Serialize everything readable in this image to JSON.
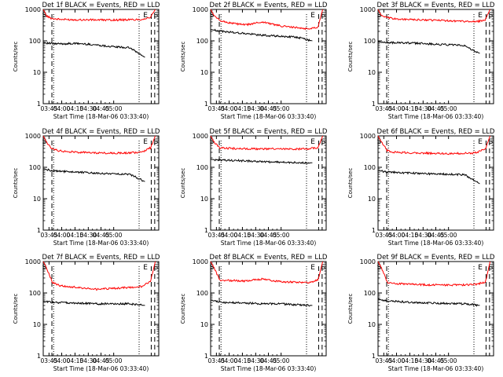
{
  "chart_data": [
    {
      "type": "line",
      "title": "Det 1f BLACK = Events, RED = LLD",
      "xlabel": "Start Time (18-Mar-06 03:33:40)",
      "ylabel": "Counts/sec",
      "ylim": [
        1,
        1000
      ],
      "yscale": "log",
      "xticks": [
        "03:45",
        "04:00",
        "04:15",
        "04:30",
        "04:45",
        "05:00"
      ],
      "yticks": [
        "1",
        "10",
        "100",
        "1000"
      ],
      "markers": [
        "S",
        "E",
        "S"
      ],
      "series": [
        {
          "color": "#ff0000",
          "x": [
            0,
            0.03,
            0.07,
            0.15,
            0.3,
            0.45,
            0.6,
            0.75,
            0.85,
            0.93,
            0.97
          ],
          "values": [
            1000,
            620,
            520,
            480,
            470,
            465,
            460,
            470,
            480,
            560,
            1000
          ]
        },
        {
          "color": "#000000",
          "x": [
            0,
            0.03,
            0.1,
            0.3,
            0.45,
            0.6,
            0.75,
            0.88
          ],
          "values": [
            88,
            85,
            80,
            82,
            75,
            65,
            60,
            30
          ]
        }
      ]
    },
    {
      "type": "line",
      "title": "Det 2f BLACK = Events, RED = LLD",
      "xlabel": "Start Time (18-Mar-06 03:33:40)",
      "ylabel": "Counts/sec",
      "ylim": [
        1,
        1000
      ],
      "yscale": "log",
      "xticks": [
        "03:45",
        "04:00",
        "04:15",
        "04:30",
        "04:45",
        "05:00"
      ],
      "yticks": [
        "1",
        "10",
        "100",
        "1000"
      ],
      "markers": [
        "S",
        "E",
        "S"
      ],
      "series": [
        {
          "color": "#ff0000",
          "x": [
            0,
            0.03,
            0.08,
            0.15,
            0.3,
            0.45,
            0.6,
            0.75,
            0.85,
            0.93,
            0.97
          ],
          "values": [
            1000,
            620,
            450,
            380,
            320,
            400,
            300,
            260,
            240,
            280,
            1000
          ]
        },
        {
          "color": "#000000",
          "x": [
            0,
            0.03,
            0.1,
            0.3,
            0.45,
            0.6,
            0.75,
            0.88
          ],
          "values": [
            230,
            220,
            200,
            170,
            150,
            140,
            130,
            100
          ]
        }
      ]
    },
    {
      "type": "line",
      "title": "Det 3f BLACK = Events, RED = LLD",
      "xlabel": "Start Time (18-Mar-06 03:33:40)",
      "ylabel": "Counts/sec",
      "ylim": [
        1,
        1000
      ],
      "yscale": "log",
      "xticks": [
        "03:45",
        "04:00",
        "04:15",
        "04:30",
        "04:45",
        "05:00"
      ],
      "yticks": [
        "1",
        "10",
        "100",
        "1000"
      ],
      "markers": [
        "S",
        "E",
        "S"
      ],
      "series": [
        {
          "color": "#ff0000",
          "x": [
            0,
            0.03,
            0.08,
            0.15,
            0.3,
            0.45,
            0.6,
            0.75,
            0.85,
            0.93,
            0.97
          ],
          "values": [
            1000,
            620,
            540,
            500,
            470,
            460,
            440,
            420,
            400,
            480,
            1000
          ]
        },
        {
          "color": "#000000",
          "x": [
            0,
            0.03,
            0.1,
            0.3,
            0.45,
            0.6,
            0.75,
            0.88
          ],
          "values": [
            95,
            90,
            88,
            85,
            80,
            75,
            70,
            40
          ]
        }
      ]
    },
    {
      "type": "line",
      "title": "Det 4f BLACK = Events, RED = LLD",
      "xlabel": "Start Time (18-Mar-06 03:33:40)",
      "ylabel": "Counts/sec",
      "ylim": [
        1,
        1000
      ],
      "yscale": "log",
      "xticks": [
        "03:45",
        "04:00",
        "04:15",
        "04:30",
        "04:45",
        "05:00"
      ],
      "yticks": [
        "1",
        "10",
        "100",
        "1000"
      ],
      "markers": [
        "S",
        "E",
        "S"
      ],
      "series": [
        {
          "color": "#ff0000",
          "x": [
            0,
            0.03,
            0.08,
            0.15,
            0.3,
            0.45,
            0.6,
            0.75,
            0.85,
            0.93,
            0.97
          ],
          "values": [
            1000,
            620,
            380,
            330,
            300,
            290,
            280,
            290,
            300,
            420,
            1000
          ]
        },
        {
          "color": "#000000",
          "x": [
            0,
            0.03,
            0.1,
            0.3,
            0.45,
            0.6,
            0.75,
            0.88
          ],
          "values": [
            90,
            85,
            75,
            70,
            65,
            62,
            60,
            35
          ]
        }
      ]
    },
    {
      "type": "line",
      "title": "Det 5f BLACK = Events, RED = LLD",
      "xlabel": "Start Time (18-Mar-06 03:33:40)",
      "ylabel": "Counts/sec",
      "ylim": [
        1,
        1000
      ],
      "yscale": "log",
      "xticks": [
        "03:45",
        "04:00",
        "04:15",
        "04:30",
        "04:45",
        "05:00"
      ],
      "yticks": [
        "1",
        "10",
        "100",
        "1000"
      ],
      "markers": [
        "S",
        "E",
        "S"
      ],
      "series": [
        {
          "color": "#ff0000",
          "x": [
            0,
            0.03,
            0.08,
            0.15,
            0.3,
            0.45,
            0.6,
            0.75,
            0.85,
            0.93,
            0.97
          ],
          "values": [
            1000,
            620,
            420,
            400,
            390,
            385,
            380,
            380,
            390,
            420,
            1000
          ]
        },
        {
          "color": "#000000",
          "x": [
            0,
            0.03,
            0.1,
            0.3,
            0.45,
            0.6,
            0.75,
            0.88
          ],
          "values": [
            180,
            175,
            170,
            160,
            150,
            145,
            140,
            140
          ]
        }
      ]
    },
    {
      "type": "line",
      "title": "Det 6f BLACK = Events, RED = LLD",
      "xlabel": "Start Time (18-Mar-06 03:33:40)",
      "ylabel": "Counts/sec",
      "ylim": [
        1,
        1000
      ],
      "yscale": "log",
      "xticks": [
        "03:45",
        "04:00",
        "04:15",
        "04:30",
        "04:45",
        "05:00"
      ],
      "yticks": [
        "1",
        "10",
        "100",
        "1000"
      ],
      "markers": [
        "S",
        "E",
        "S"
      ],
      "series": [
        {
          "color": "#ff0000",
          "x": [
            0,
            0.03,
            0.08,
            0.15,
            0.3,
            0.45,
            0.6,
            0.75,
            0.85,
            0.93,
            0.97
          ],
          "values": [
            1000,
            620,
            340,
            300,
            290,
            280,
            270,
            280,
            290,
            380,
            1000
          ]
        },
        {
          "color": "#000000",
          "x": [
            0,
            0.03,
            0.1,
            0.3,
            0.45,
            0.6,
            0.75,
            0.88
          ],
          "values": [
            80,
            75,
            70,
            65,
            62,
            60,
            58,
            30
          ]
        }
      ]
    },
    {
      "type": "line",
      "title": "Det 7f BLACK = Events, RED = LLD",
      "xlabel": "Start Time (18-Mar-06 03:33:40)",
      "ylabel": "Counts/sec",
      "ylim": [
        1,
        1000
      ],
      "yscale": "log",
      "xticks": [
        "03:45",
        "04:00",
        "04:15",
        "04:30",
        "04:45",
        "05:00"
      ],
      "yticks": [
        "1",
        "10",
        "100",
        "1000"
      ],
      "markers": [
        "S",
        "E",
        "S"
      ],
      "series": [
        {
          "color": "#ff0000",
          "x": [
            0,
            0.03,
            0.08,
            0.15,
            0.3,
            0.45,
            0.6,
            0.75,
            0.85,
            0.93,
            0.97
          ],
          "values": [
            1000,
            620,
            210,
            170,
            150,
            130,
            140,
            150,
            160,
            240,
            1000
          ]
        },
        {
          "color": "#000000",
          "x": [
            0,
            0.03,
            0.1,
            0.3,
            0.45,
            0.6,
            0.75,
            0.88
          ],
          "values": [
            55,
            52,
            50,
            48,
            45,
            45,
            45,
            40
          ]
        }
      ]
    },
    {
      "type": "line",
      "title": "Det 8f BLACK = Events, RED = LLD",
      "xlabel": "Start Time (18-Mar-06 03:33:40)",
      "ylabel": "Counts/sec",
      "ylim": [
        1,
        1000
      ],
      "yscale": "log",
      "xticks": [
        "03:45",
        "04:00",
        "04:15",
        "04:30",
        "04:45",
        "05:00"
      ],
      "yticks": [
        "1",
        "10",
        "100",
        "1000"
      ],
      "markers": [
        "S",
        "E",
        "S"
      ],
      "series": [
        {
          "color": "#ff0000",
          "x": [
            0,
            0.03,
            0.08,
            0.15,
            0.3,
            0.45,
            0.6,
            0.75,
            0.85,
            0.93,
            0.97
          ],
          "values": [
            1000,
            620,
            260,
            250,
            240,
            280,
            230,
            220,
            210,
            260,
            1000
          ]
        },
        {
          "color": "#000000",
          "x": [
            0,
            0.03,
            0.1,
            0.3,
            0.45,
            0.6,
            0.75,
            0.88
          ],
          "values": [
            60,
            55,
            50,
            48,
            45,
            45,
            42,
            40
          ]
        }
      ]
    },
    {
      "type": "line",
      "title": "Det 9f BLACK = Events, RED = LLD",
      "xlabel": "Start Time (18-Mar-06 03:33:40)",
      "ylabel": "Counts/sec",
      "ylim": [
        1,
        1000
      ],
      "yscale": "log",
      "xticks": [
        "03:45",
        "04:00",
        "04:15",
        "04:30",
        "04:45",
        "05:00"
      ],
      "yticks": [
        "1",
        "10",
        "100",
        "1000"
      ],
      "markers": [
        "S",
        "E",
        "S"
      ],
      "series": [
        {
          "color": "#ff0000",
          "x": [
            0,
            0.03,
            0.08,
            0.15,
            0.3,
            0.45,
            0.6,
            0.75,
            0.85,
            0.93,
            0.97
          ],
          "values": [
            1000,
            620,
            220,
            200,
            190,
            180,
            180,
            180,
            190,
            220,
            1000
          ]
        },
        {
          "color": "#000000",
          "x": [
            0,
            0.03,
            0.1,
            0.3,
            0.45,
            0.6,
            0.75,
            0.88
          ],
          "values": [
            65,
            60,
            55,
            50,
            48,
            46,
            45,
            40
          ]
        }
      ]
    }
  ]
}
